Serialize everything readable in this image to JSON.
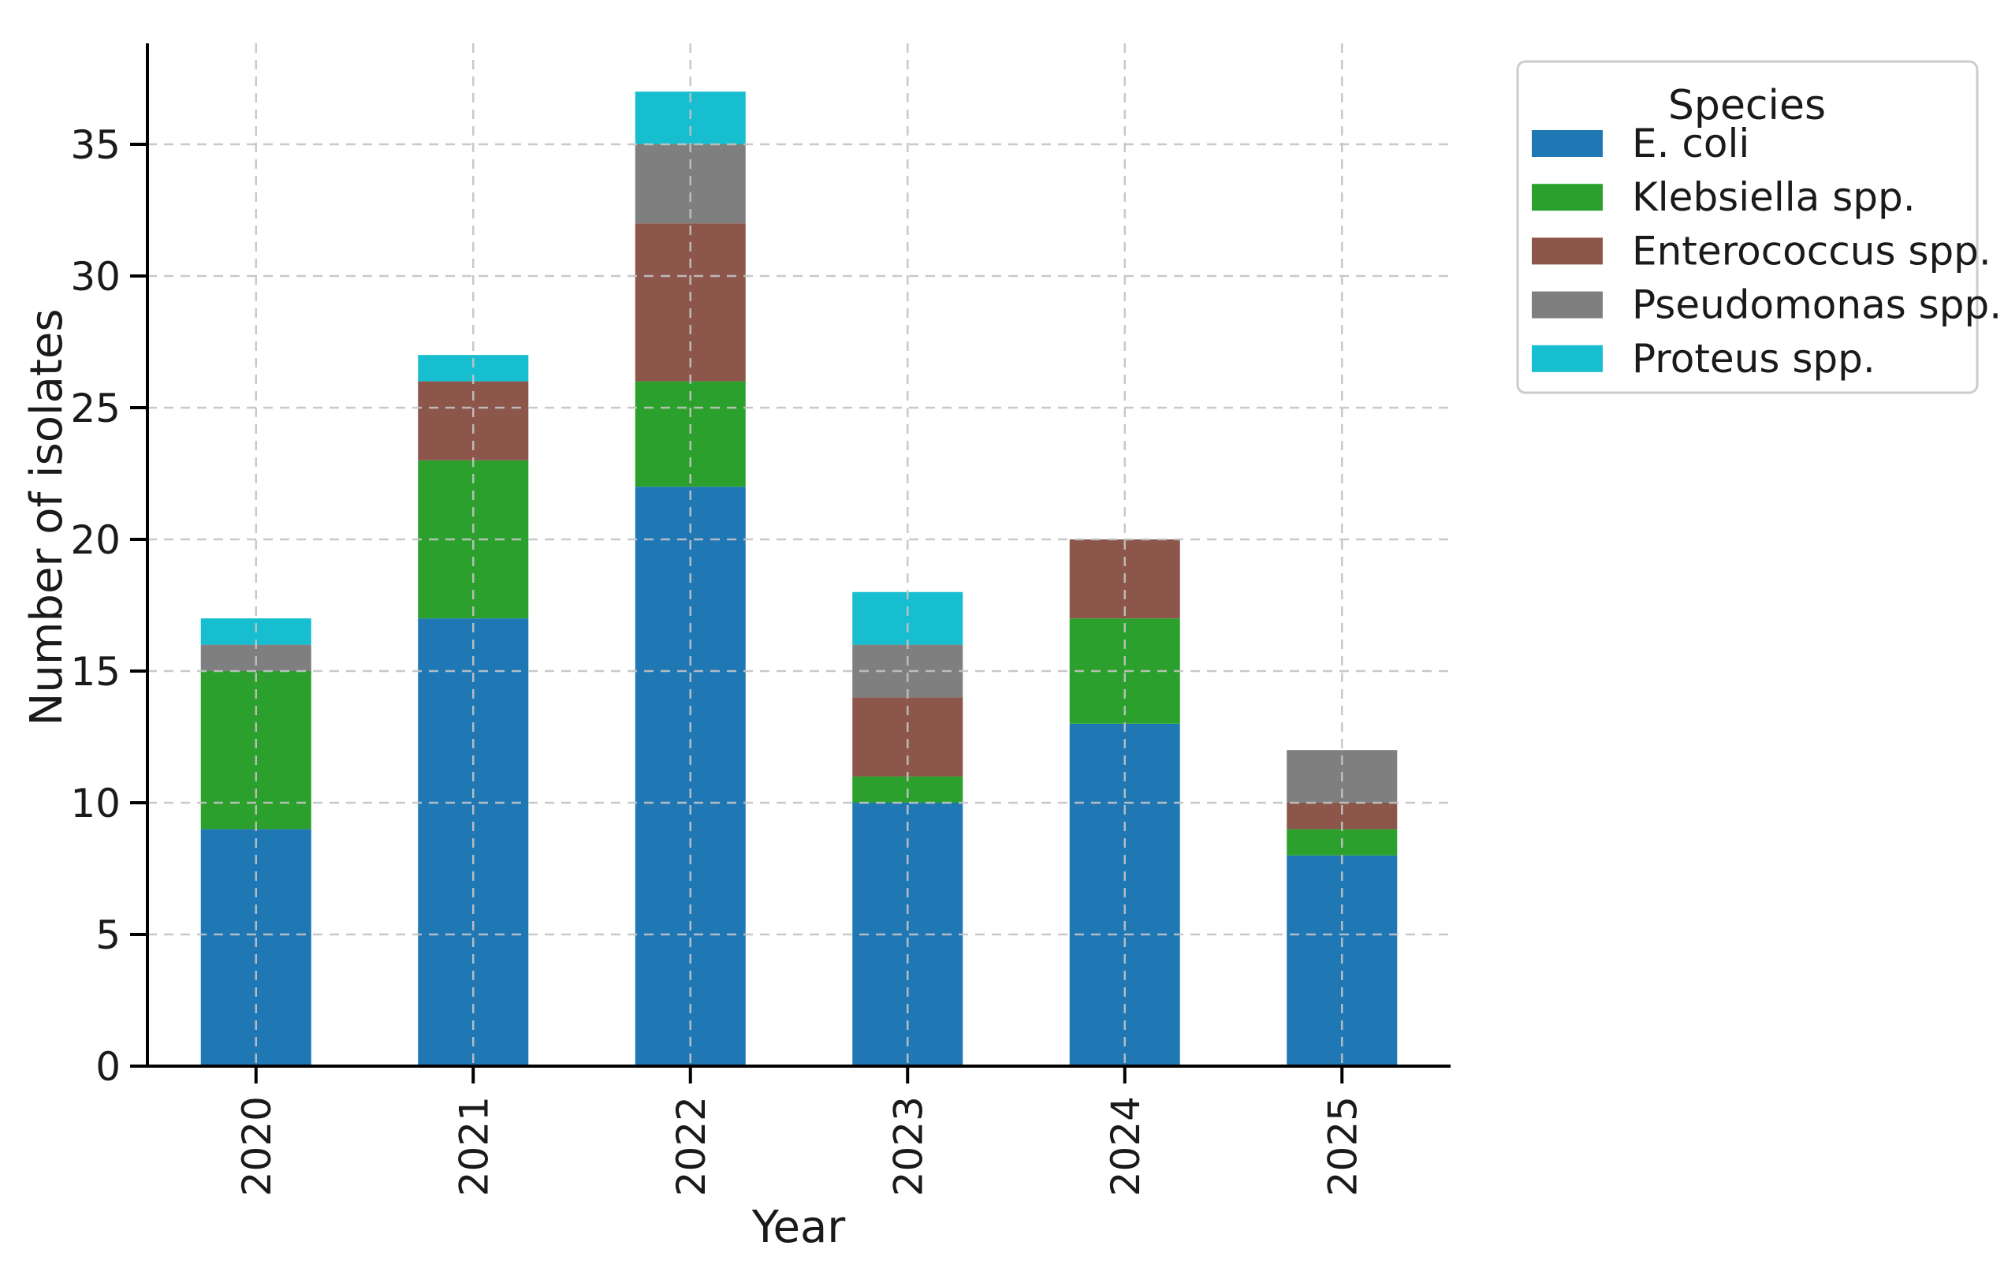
{
  "figure": {
    "background": "#ffffff",
    "text_color": "#1a1a1a",
    "grid_color": "#c3c3c3",
    "spine_color": "#000000",
    "legend_border_color": "#cccccc"
  },
  "chart_data": {
    "type": "bar",
    "stacked": true,
    "title": "",
    "xlabel": "Year",
    "ylabel": "Number of isolates",
    "categories": [
      "2020",
      "2021",
      "2022",
      "2023",
      "2024",
      "2025"
    ],
    "series": [
      {
        "name": "E. coli",
        "color": "#1f77b4",
        "values": [
          9,
          17,
          22,
          10,
          13,
          8
        ]
      },
      {
        "name": "Klebsiella spp.",
        "color": "#2ca02c",
        "values": [
          6,
          6,
          4,
          1,
          4,
          1
        ]
      },
      {
        "name": "Enterococcus spp.",
        "color": "#8c564b",
        "values": [
          0,
          3,
          6,
          3,
          3,
          1
        ]
      },
      {
        "name": "Pseudomonas spp.",
        "color": "#7f7f7f",
        "values": [
          1,
          0,
          3,
          2,
          0,
          2
        ]
      },
      {
        "name": "Proteus spp.",
        "color": "#17becf",
        "values": [
          1,
          1,
          2,
          2,
          0,
          0
        ]
      }
    ],
    "stack_totals": [
      17,
      27,
      37,
      18,
      20,
      12
    ],
    "y_ticks": [
      0,
      5,
      10,
      15,
      20,
      25,
      30,
      35
    ],
    "ylim": [
      0,
      38.8
    ],
    "grid": true,
    "grid_style": "dashed",
    "grid_on_top": true,
    "x_tick_rotation": 90,
    "legend": {
      "title": "Species",
      "position": "outside-upper-right"
    }
  }
}
